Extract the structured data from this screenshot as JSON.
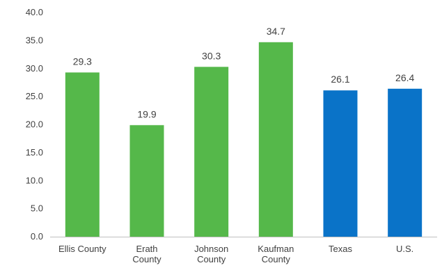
{
  "chart_data": {
    "type": "bar",
    "title": "",
    "xlabel": "",
    "ylabel": "",
    "categories": [
      [
        "Ellis County"
      ],
      [
        "Erath",
        "County"
      ],
      [
        "Johnson",
        "County"
      ],
      [
        "Kaufman",
        "County"
      ],
      [
        "Texas"
      ],
      [
        "U.S."
      ]
    ],
    "values": [
      29.3,
      19.9,
      30.3,
      34.7,
      26.1,
      26.4
    ],
    "value_labels": [
      "29.3",
      "19.9",
      "30.3",
      "34.7",
      "26.1",
      "26.4"
    ],
    "bar_colors": [
      "#55b84a",
      "#55b84a",
      "#55b84a",
      "#55b84a",
      "#0a73c8",
      "#0a73c8"
    ],
    "ylim": [
      0,
      40
    ],
    "yticks": [
      "0.0",
      "5.0",
      "10.0",
      "15.0",
      "20.0",
      "25.0",
      "30.0",
      "35.0",
      "40.0"
    ],
    "grid": false,
    "legend": "none"
  }
}
